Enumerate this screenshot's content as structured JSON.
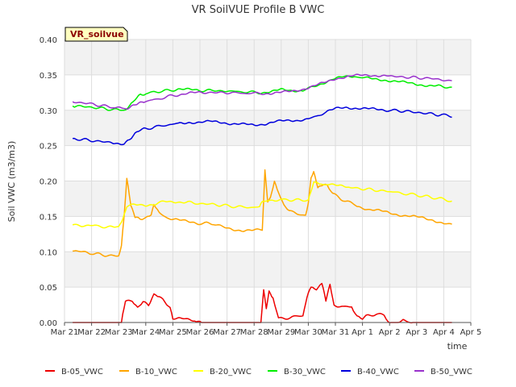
{
  "chart_data": {
    "type": "line",
    "title": "VR SoilVUE Profile B VWC",
    "xlabel": "time",
    "ylabel": "Soil VWC (m3/m3)",
    "annotation": "VR_soilvue",
    "ylim": [
      0,
      0.4
    ],
    "yticks": [
      "0.00",
      "0.05",
      "0.10",
      "0.15",
      "0.20",
      "0.25",
      "0.30",
      "0.35",
      "0.40"
    ],
    "xlim": [
      0,
      15
    ],
    "xticks": [
      "Mar 21",
      "Mar 22",
      "Mar 23",
      "Mar 24",
      "Mar 25",
      "Mar 26",
      "Mar 27",
      "Mar 28",
      "Mar 29",
      "Mar 30",
      "Mar 31",
      "Apr 1",
      "Apr 2",
      "Apr 3",
      "Apr 4",
      "Apr 5"
    ],
    "grid": true,
    "legend_position": "bottom",
    "x_unit": "days since Mar 21",
    "series": [
      {
        "name": "B-05_VWC",
        "color": "#ee0000",
        "points": [
          [
            0.3,
            0.0
          ],
          [
            1.9,
            0.0
          ],
          [
            2.1,
            0.0
          ],
          [
            2.25,
            0.03
          ],
          [
            2.5,
            0.03
          ],
          [
            2.7,
            0.02
          ],
          [
            2.9,
            0.03
          ],
          [
            3.1,
            0.025
          ],
          [
            3.3,
            0.04
          ],
          [
            3.5,
            0.038
          ],
          [
            3.7,
            0.03
          ],
          [
            3.9,
            0.02
          ],
          [
            4.0,
            0.005
          ],
          [
            4.4,
            0.005
          ],
          [
            4.8,
            0.003
          ],
          [
            5.0,
            0.0
          ],
          [
            6.9,
            0.0
          ],
          [
            7.25,
            0.0
          ],
          [
            7.35,
            0.045
          ],
          [
            7.45,
            0.02
          ],
          [
            7.55,
            0.045
          ],
          [
            7.7,
            0.035
          ],
          [
            7.9,
            0.005
          ],
          [
            8.5,
            0.008
          ],
          [
            8.8,
            0.01
          ],
          [
            8.95,
            0.035
          ],
          [
            9.1,
            0.05
          ],
          [
            9.3,
            0.048
          ],
          [
            9.5,
            0.055
          ],
          [
            9.65,
            0.03
          ],
          [
            9.8,
            0.055
          ],
          [
            9.95,
            0.025
          ],
          [
            10.3,
            0.022
          ],
          [
            10.6,
            0.022
          ],
          [
            10.8,
            0.008
          ],
          [
            11.0,
            0.005
          ],
          [
            11.2,
            0.01
          ],
          [
            11.5,
            0.012
          ],
          [
            11.8,
            0.01
          ],
          [
            12.0,
            0.0
          ],
          [
            12.3,
            0.0
          ],
          [
            12.5,
            0.003
          ],
          [
            12.8,
            0.0
          ],
          [
            14.3,
            0.0
          ]
        ]
      },
      {
        "name": "B-10_VWC",
        "color": "#ffa500",
        "points": [
          [
            0.3,
            0.101
          ],
          [
            1.0,
            0.098
          ],
          [
            1.5,
            0.095
          ],
          [
            2.0,
            0.094
          ],
          [
            2.1,
            0.11
          ],
          [
            2.2,
            0.15
          ],
          [
            2.3,
            0.203
          ],
          [
            2.45,
            0.165
          ],
          [
            2.6,
            0.15
          ],
          [
            2.8,
            0.147
          ],
          [
            3.0,
            0.148
          ],
          [
            3.2,
            0.153
          ],
          [
            3.3,
            0.168
          ],
          [
            3.5,
            0.155
          ],
          [
            3.8,
            0.148
          ],
          [
            4.2,
            0.145
          ],
          [
            4.6,
            0.142
          ],
          [
            5.0,
            0.14
          ],
          [
            5.5,
            0.14
          ],
          [
            5.8,
            0.135
          ],
          [
            6.2,
            0.132
          ],
          [
            6.6,
            0.13
          ],
          [
            7.0,
            0.13
          ],
          [
            7.3,
            0.132
          ],
          [
            7.4,
            0.215
          ],
          [
            7.5,
            0.17
          ],
          [
            7.6,
            0.175
          ],
          [
            7.75,
            0.2
          ],
          [
            7.9,
            0.185
          ],
          [
            8.1,
            0.165
          ],
          [
            8.3,
            0.158
          ],
          [
            8.6,
            0.153
          ],
          [
            8.9,
            0.152
          ],
          [
            9.0,
            0.17
          ],
          [
            9.1,
            0.205
          ],
          [
            9.2,
            0.212
          ],
          [
            9.35,
            0.19
          ],
          [
            9.5,
            0.195
          ],
          [
            9.7,
            0.195
          ],
          [
            9.9,
            0.182
          ],
          [
            10.2,
            0.175
          ],
          [
            10.5,
            0.17
          ],
          [
            10.8,
            0.165
          ],
          [
            11.2,
            0.16
          ],
          [
            11.6,
            0.158
          ],
          [
            12.0,
            0.155
          ],
          [
            12.4,
            0.152
          ],
          [
            12.8,
            0.15
          ],
          [
            13.2,
            0.148
          ],
          [
            13.6,
            0.145
          ],
          [
            14.0,
            0.14
          ],
          [
            14.3,
            0.138
          ]
        ]
      },
      {
        "name": "B-20_VWC",
        "color": "#ffff00",
        "points": [
          [
            0.3,
            0.138
          ],
          [
            1.0,
            0.137
          ],
          [
            1.6,
            0.135
          ],
          [
            2.0,
            0.134
          ],
          [
            2.15,
            0.145
          ],
          [
            2.3,
            0.165
          ],
          [
            2.6,
            0.166
          ],
          [
            3.0,
            0.166
          ],
          [
            3.4,
            0.168
          ],
          [
            3.7,
            0.171
          ],
          [
            4.1,
            0.171
          ],
          [
            4.5,
            0.17
          ],
          [
            5.0,
            0.168
          ],
          [
            5.5,
            0.167
          ],
          [
            6.0,
            0.165
          ],
          [
            6.6,
            0.163
          ],
          [
            7.2,
            0.163
          ],
          [
            7.3,
            0.17
          ],
          [
            7.6,
            0.173
          ],
          [
            8.0,
            0.174
          ],
          [
            8.5,
            0.173
          ],
          [
            9.0,
            0.173
          ],
          [
            9.1,
            0.185
          ],
          [
            9.2,
            0.2
          ],
          [
            9.4,
            0.195
          ],
          [
            9.7,
            0.196
          ],
          [
            10.1,
            0.193
          ],
          [
            10.5,
            0.191
          ],
          [
            11.0,
            0.189
          ],
          [
            11.5,
            0.187
          ],
          [
            12.0,
            0.185
          ],
          [
            12.6,
            0.182
          ],
          [
            13.2,
            0.179
          ],
          [
            13.7,
            0.176
          ],
          [
            14.3,
            0.172
          ]
        ]
      },
      {
        "name": "B-30_VWC",
        "color": "#00ee00",
        "points": [
          [
            0.3,
            0.306
          ],
          [
            0.8,
            0.305
          ],
          [
            1.3,
            0.303
          ],
          [
            1.8,
            0.301
          ],
          [
            2.2,
            0.299
          ],
          [
            2.4,
            0.305
          ],
          [
            2.6,
            0.315
          ],
          [
            2.8,
            0.322
          ],
          [
            3.0,
            0.323
          ],
          [
            3.3,
            0.326
          ],
          [
            3.6,
            0.327
          ],
          [
            3.9,
            0.328
          ],
          [
            4.2,
            0.33
          ],
          [
            4.6,
            0.329
          ],
          [
            5.0,
            0.328
          ],
          [
            5.5,
            0.328
          ],
          [
            6.0,
            0.327
          ],
          [
            6.6,
            0.326
          ],
          [
            7.2,
            0.325
          ],
          [
            7.6,
            0.326
          ],
          [
            8.0,
            0.329
          ],
          [
            8.4,
            0.328
          ],
          [
            8.8,
            0.328
          ],
          [
            9.1,
            0.332
          ],
          [
            9.5,
            0.338
          ],
          [
            9.9,
            0.344
          ],
          [
            10.3,
            0.347
          ],
          [
            10.7,
            0.348
          ],
          [
            11.0,
            0.346
          ],
          [
            11.4,
            0.344
          ],
          [
            11.8,
            0.343
          ],
          [
            12.2,
            0.341
          ],
          [
            12.6,
            0.339
          ],
          [
            13.0,
            0.337
          ],
          [
            13.4,
            0.335
          ],
          [
            13.8,
            0.334
          ],
          [
            14.3,
            0.332
          ]
        ]
      },
      {
        "name": "B-40_VWC",
        "color": "#0000dd",
        "points": [
          [
            0.3,
            0.26
          ],
          [
            0.8,
            0.258
          ],
          [
            1.3,
            0.256
          ],
          [
            1.8,
            0.254
          ],
          [
            2.2,
            0.253
          ],
          [
            2.4,
            0.258
          ],
          [
            2.6,
            0.266
          ],
          [
            2.8,
            0.272
          ],
          [
            3.0,
            0.274
          ],
          [
            3.3,
            0.276
          ],
          [
            3.6,
            0.278
          ],
          [
            3.9,
            0.28
          ],
          [
            4.2,
            0.281
          ],
          [
            4.6,
            0.283
          ],
          [
            5.0,
            0.283
          ],
          [
            5.4,
            0.284
          ],
          [
            5.8,
            0.283
          ],
          [
            6.2,
            0.281
          ],
          [
            6.6,
            0.28
          ],
          [
            7.0,
            0.279
          ],
          [
            7.4,
            0.281
          ],
          [
            7.8,
            0.284
          ],
          [
            8.2,
            0.285
          ],
          [
            8.6,
            0.286
          ],
          [
            9.0,
            0.288
          ],
          [
            9.3,
            0.291
          ],
          [
            9.6,
            0.297
          ],
          [
            10.0,
            0.302
          ],
          [
            10.4,
            0.304
          ],
          [
            10.8,
            0.303
          ],
          [
            11.2,
            0.302
          ],
          [
            11.6,
            0.301
          ],
          [
            12.0,
            0.3
          ],
          [
            12.5,
            0.299
          ],
          [
            13.0,
            0.297
          ],
          [
            13.5,
            0.295
          ],
          [
            14.0,
            0.293
          ],
          [
            14.3,
            0.292
          ]
        ]
      },
      {
        "name": "B-50_VWC",
        "color": "#9932cc",
        "points": [
          [
            0.3,
            0.312
          ],
          [
            0.8,
            0.31
          ],
          [
            1.3,
            0.307
          ],
          [
            1.8,
            0.304
          ],
          [
            2.2,
            0.302
          ],
          [
            2.4,
            0.304
          ],
          [
            2.6,
            0.308
          ],
          [
            2.8,
            0.31
          ],
          [
            3.0,
            0.312
          ],
          [
            3.3,
            0.315
          ],
          [
            3.6,
            0.317
          ],
          [
            3.9,
            0.32
          ],
          [
            4.2,
            0.322
          ],
          [
            4.6,
            0.324
          ],
          [
            5.0,
            0.325
          ],
          [
            5.5,
            0.325
          ],
          [
            6.0,
            0.325
          ],
          [
            6.6,
            0.324
          ],
          [
            7.2,
            0.324
          ],
          [
            7.6,
            0.324
          ],
          [
            8.0,
            0.325
          ],
          [
            8.4,
            0.327
          ],
          [
            8.8,
            0.33
          ],
          [
            9.2,
            0.334
          ],
          [
            9.6,
            0.339
          ],
          [
            10.0,
            0.345
          ],
          [
            10.4,
            0.347
          ],
          [
            10.8,
            0.349
          ],
          [
            11.2,
            0.35
          ],
          [
            11.6,
            0.349
          ],
          [
            12.0,
            0.348
          ],
          [
            12.5,
            0.347
          ],
          [
            13.0,
            0.346
          ],
          [
            13.5,
            0.345
          ],
          [
            14.0,
            0.343
          ],
          [
            14.3,
            0.341
          ]
        ]
      }
    ]
  }
}
